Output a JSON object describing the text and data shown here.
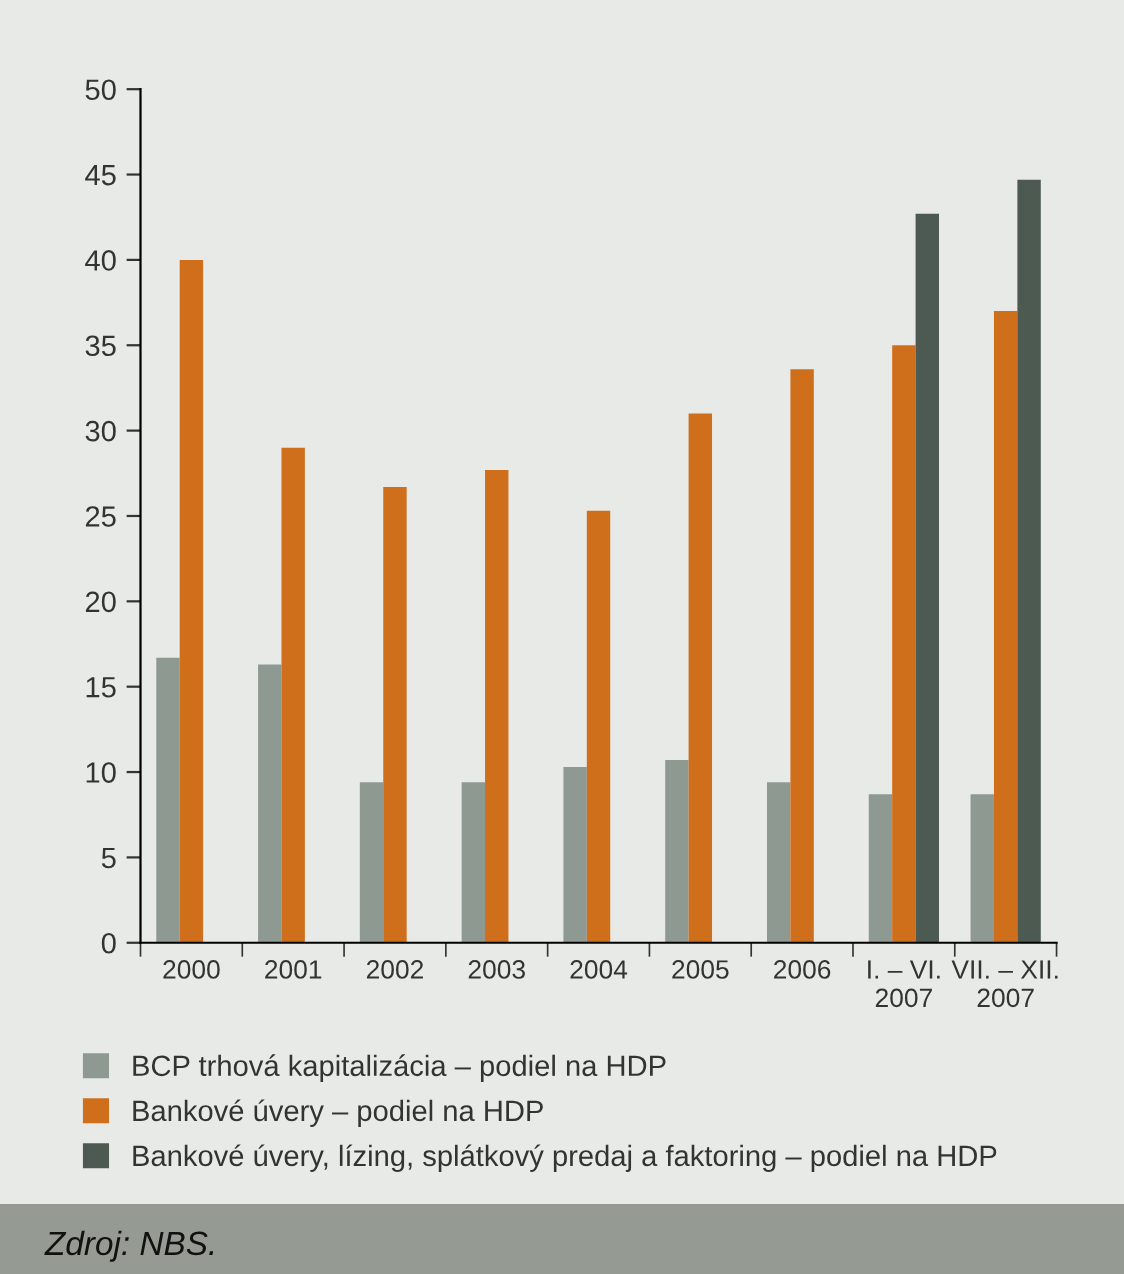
{
  "chart_data": {
    "type": "bar",
    "categories": [
      "2000",
      "2001",
      "2002",
      "2003",
      "2004",
      "2005",
      "2006",
      "I. – VI.\n2007",
      "VII. – XII.\n2007"
    ],
    "series": [
      {
        "name": "BCP trhová kapitalizácia – podiel na HDP",
        "color": "#8e9a91",
        "values": [
          16.7,
          16.3,
          9.4,
          9.4,
          10.3,
          10.7,
          9.4,
          8.7,
          8.7
        ]
      },
      {
        "name": "Bankové úvery – podiel na HDP",
        "color": "#cf6f1c",
        "values": [
          40.0,
          29.0,
          26.7,
          27.7,
          25.3,
          31.0,
          33.6,
          35.0,
          37.0
        ]
      },
      {
        "name": "Bankové úvery, lízing, splátkový predaj a faktoring – podiel na HDP",
        "color": "#4d5a51",
        "values": [
          null,
          null,
          null,
          null,
          null,
          null,
          null,
          42.7,
          44.7
        ]
      }
    ],
    "ylim": [
      0,
      50
    ],
    "yticks": [
      0,
      5,
      10,
      15,
      20,
      25,
      30,
      35,
      40,
      45,
      50
    ],
    "grid": false,
    "legend": "bottom",
    "annotations": [
      "Zdroj: NBS."
    ]
  }
}
